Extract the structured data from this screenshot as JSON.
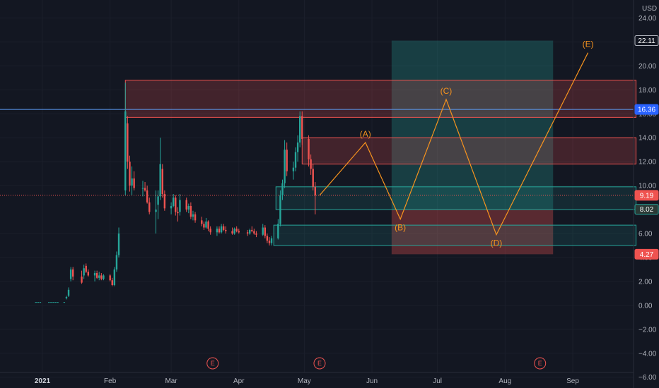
{
  "chart_data": {
    "type": "candlestick",
    "currency": "USD",
    "y_ticks": [
      "24.00",
      "22.00",
      "20.00",
      "18.00",
      "16.00",
      "14.00",
      "12.00",
      "10.00",
      "6.00",
      "4.00",
      "2.00",
      "0.00",
      "−2.00",
      "−4.00",
      "−6.00"
    ],
    "ylim": [
      -6.9,
      25.5
    ],
    "x_ticks": [
      {
        "label": "2021",
        "date": "2021-01-01",
        "bold": true
      },
      {
        "label": "Feb",
        "date": "2021-02-01"
      },
      {
        "label": "Mar",
        "date": "2021-03-01"
      },
      {
        "label": "Apr",
        "date": "2021-04-01"
      },
      {
        "label": "May",
        "date": "2021-05-01"
      },
      {
        "label": "Jun",
        "date": "2021-06-01"
      },
      {
        "label": "Jul",
        "date": "2021-07-01"
      },
      {
        "label": "Aug",
        "date": "2021-08-01"
      },
      {
        "label": "Sep",
        "date": "2021-09-01"
      }
    ],
    "price_tags": [
      {
        "value": 22.11,
        "label": "22.11",
        "color": "#131722",
        "border": "#b2b5be"
      },
      {
        "value": 16.36,
        "label": "16.36",
        "color": "#2962ff"
      },
      {
        "value": 9.19,
        "label": "9.19",
        "color": "#ef5350"
      },
      {
        "value": 8.02,
        "label": "8.02",
        "color": "#2a3a36",
        "border": "#26a69a"
      },
      {
        "value": 4.27,
        "label": "4.27",
        "color": "#ef5350"
      }
    ],
    "horizontal_lines": [
      {
        "value": 16.36,
        "color": "#5b9cf6",
        "style": "solid"
      },
      {
        "value": 9.19,
        "color": "#ef5350",
        "style": "dotted"
      }
    ],
    "zones": [
      {
        "type": "resistance",
        "x_start": "2021-02-08",
        "x_end": "2021-09-30",
        "y_top": 18.8,
        "y_bottom": 15.7
      },
      {
        "type": "resistance",
        "x_start": "2021-04-30",
        "x_end": "2021-09-30",
        "y_top": 14.0,
        "y_bottom": 11.8
      },
      {
        "type": "support",
        "x_start": "2021-04-18",
        "x_end": "2021-09-30",
        "y_top": 9.9,
        "y_bottom": 8.0
      },
      {
        "type": "support",
        "x_start": "2021-04-17",
        "x_end": "2021-09-30",
        "y_top": 6.7,
        "y_bottom": 5.0
      }
    ],
    "position": {
      "x_start": "2021-06-10",
      "x_end": "2021-08-23",
      "entry": 8.02,
      "target": 22.11,
      "stop": 4.27
    },
    "waves": [
      {
        "date": "2021-05-08",
        "price": 9.19,
        "label": ""
      },
      {
        "date": "2021-05-29",
        "price": 13.6,
        "label": "(A)"
      },
      {
        "date": "2021-06-14",
        "price": 7.2,
        "label": "(B)"
      },
      {
        "date": "2021-07-05",
        "price": 17.2,
        "label": "(C)"
      },
      {
        "date": "2021-07-28",
        "price": 5.9,
        "label": "(D)"
      },
      {
        "date": "2021-09-08",
        "price": 21.1,
        "label": "(E)"
      }
    ],
    "earnings": [
      {
        "date": "2021-03-20",
        "label": "E"
      },
      {
        "date": "2021-05-08",
        "label": "E"
      },
      {
        "date": "2021-08-17",
        "label": "E"
      }
    ],
    "candles": [
      [
        "2020-12-29",
        0.28,
        0.28,
        0.28,
        0.28
      ],
      [
        "2020-12-30",
        0.28,
        0.28,
        0.28,
        0.28
      ],
      [
        "2020-12-31",
        0.28,
        0.28,
        0.28,
        0.28
      ],
      [
        "2021-01-04",
        0.28,
        0.28,
        0.28,
        0.28
      ],
      [
        "2021-01-05",
        0.28,
        0.28,
        0.28,
        0.28
      ],
      [
        "2021-01-06",
        0.28,
        0.28,
        0.28,
        0.28
      ],
      [
        "2021-01-07",
        0.28,
        0.28,
        0.28,
        0.28
      ],
      [
        "2021-01-08",
        0.28,
        0.28,
        0.28,
        0.28
      ],
      [
        "2021-01-11",
        0.28,
        0.28,
        0.28,
        0.28
      ],
      [
        "2021-01-12",
        0.6,
        0.8,
        0.5,
        0.7
      ],
      [
        "2021-01-13",
        0.8,
        1.5,
        0.7,
        1.3
      ],
      [
        "2021-01-14",
        2.2,
        3.2,
        2.0,
        3.0
      ],
      [
        "2021-01-15",
        3.0,
        3.2,
        2.1,
        2.4
      ],
      [
        "2021-01-19",
        2.4,
        2.9,
        1.8,
        1.9
      ],
      [
        "2021-01-20",
        2.5,
        3.4,
        2.2,
        3.1
      ],
      [
        "2021-01-21",
        3.3,
        3.5,
        2.7,
        2.8
      ],
      [
        "2021-01-22",
        2.8,
        3.0,
        2.4,
        2.5
      ],
      [
        "2021-01-25",
        2.5,
        2.9,
        2.0,
        2.7
      ],
      [
        "2021-01-26",
        2.7,
        2.9,
        2.2,
        2.3
      ],
      [
        "2021-01-27",
        2.3,
        2.8,
        2.1,
        2.5
      ],
      [
        "2021-01-28",
        2.5,
        2.7,
        2.1,
        2.2
      ],
      [
        "2021-01-29",
        2.2,
        2.6,
        2.1,
        2.5
      ],
      [
        "2021-02-01",
        2.5,
        2.6,
        2.0,
        2.1
      ],
      [
        "2021-02-02",
        2.1,
        2.3,
        1.6,
        1.7
      ],
      [
        "2021-02-03",
        1.7,
        3.2,
        1.6,
        3.0
      ],
      [
        "2021-02-04",
        3.0,
        4.5,
        2.8,
        4.2
      ],
      [
        "2021-02-05",
        4.2,
        6.5,
        4.0,
        6.0
      ],
      [
        "2021-02-08",
        9.6,
        18.6,
        9.2,
        16.2
      ],
      [
        "2021-02-09",
        15.2,
        15.8,
        11.4,
        12.0
      ],
      [
        "2021-02-10",
        12.0,
        12.5,
        9.5,
        10.0
      ],
      [
        "2021-02-11",
        10.0,
        11.6,
        9.2,
        10.6
      ],
      [
        "2021-02-12",
        10.6,
        11.2,
        9.6,
        9.8
      ],
      [
        "2021-02-16",
        9.8,
        10.4,
        9.1,
        9.8
      ],
      [
        "2021-02-17",
        9.8,
        10.3,
        9.5,
        9.6
      ],
      [
        "2021-02-18",
        9.6,
        10.0,
        8.5,
        8.6
      ],
      [
        "2021-02-19",
        8.6,
        9.0,
        7.6,
        7.8
      ],
      [
        "2021-02-22",
        7.8,
        9.6,
        6.0,
        8.0
      ],
      [
        "2021-02-23",
        8.4,
        9.6,
        7.2,
        9.1
      ],
      [
        "2021-02-24",
        9.1,
        14.0,
        8.8,
        11.8
      ],
      [
        "2021-02-25",
        11.4,
        11.8,
        9.0,
        9.3
      ],
      [
        "2021-02-26",
        9.3,
        9.6,
        7.9,
        8.1
      ],
      [
        "2021-03-01",
        8.1,
        8.6,
        7.6,
        8.3
      ],
      [
        "2021-03-02",
        8.3,
        9.3,
        8.2,
        9.0
      ],
      [
        "2021-03-03",
        9.0,
        9.2,
        7.5,
        7.8
      ],
      [
        "2021-03-04",
        7.8,
        8.2,
        7.0,
        7.7
      ],
      [
        "2021-03-05",
        7.8,
        9.3,
        7.5,
        8.8
      ],
      [
        "2021-03-08",
        8.8,
        9.0,
        7.8,
        8.0
      ],
      [
        "2021-03-09",
        8.0,
        8.5,
        7.7,
        8.3
      ],
      [
        "2021-03-10",
        8.3,
        8.6,
        7.2,
        7.4
      ],
      [
        "2021-03-11",
        7.4,
        7.9,
        7.1,
        7.6
      ],
      [
        "2021-03-12",
        7.6,
        7.8,
        6.9,
        7.1
      ],
      [
        "2021-03-15",
        7.1,
        7.4,
        6.6,
        6.8
      ],
      [
        "2021-03-16",
        6.8,
        7.0,
        6.3,
        6.5
      ],
      [
        "2021-03-17",
        6.5,
        7.3,
        6.4,
        7.0
      ],
      [
        "2021-03-18",
        7.0,
        7.1,
        6.2,
        6.4
      ],
      [
        "2021-03-19",
        6.4,
        6.6,
        5.9,
        6.1
      ],
      [
        "2021-03-22",
        6.1,
        6.6,
        5.8,
        6.4
      ],
      [
        "2021-03-23",
        6.4,
        6.6,
        6.0,
        6.1
      ],
      [
        "2021-03-24",
        6.1,
        6.8,
        6.0,
        6.6
      ],
      [
        "2021-03-25",
        6.6,
        6.8,
        6.2,
        6.3
      ],
      [
        "2021-03-26",
        6.3,
        6.6,
        6.0,
        6.2
      ],
      [
        "2021-03-29",
        6.2,
        6.5,
        5.9,
        6.0
      ],
      [
        "2021-03-30",
        6.0,
        6.5,
        5.9,
        6.4
      ],
      [
        "2021-03-31",
        6.4,
        6.6,
        6.1,
        6.2
      ],
      [
        "2021-04-01",
        6.2,
        6.4,
        6.0,
        6.1
      ],
      [
        "2021-04-05",
        6.1,
        6.3,
        5.8,
        6.0
      ],
      [
        "2021-04-06",
        6.0,
        6.4,
        5.9,
        6.3
      ],
      [
        "2021-04-07",
        6.3,
        6.6,
        6.1,
        6.2
      ],
      [
        "2021-04-08",
        6.2,
        6.4,
        5.9,
        6.0
      ],
      [
        "2021-04-09",
        6.0,
        6.2,
        5.7,
        5.9
      ],
      [
        "2021-04-12",
        5.9,
        6.8,
        5.8,
        6.5
      ],
      [
        "2021-04-13",
        6.5,
        6.7,
        5.6,
        5.8
      ],
      [
        "2021-04-14",
        5.8,
        6.0,
        5.2,
        5.4
      ],
      [
        "2021-04-15",
        5.4,
        5.7,
        5.0,
        5.2
      ],
      [
        "2021-04-16",
        5.2,
        5.8,
        5.0,
        5.6
      ],
      [
        "2021-04-19",
        5.6,
        7.2,
        5.5,
        6.8
      ],
      [
        "2021-04-20",
        6.8,
        9.6,
        6.6,
        9.2
      ],
      [
        "2021-04-21",
        9.2,
        10.5,
        8.8,
        10.2
      ],
      [
        "2021-04-22",
        10.2,
        13.8,
        9.8,
        13.0
      ],
      [
        "2021-04-23",
        13.0,
        13.6,
        10.8,
        11.2
      ],
      [
        "2021-04-26",
        11.2,
        12.0,
        10.5,
        11.5
      ],
      [
        "2021-04-27",
        11.5,
        13.2,
        11.2,
        12.8
      ],
      [
        "2021-04-28",
        12.8,
        14.2,
        12.0,
        13.6
      ],
      [
        "2021-04-29",
        13.6,
        16.2,
        13.2,
        15.8
      ],
      [
        "2021-04-30",
        15.8,
        16.2,
        13.4,
        13.9
      ],
      [
        "2021-05-03",
        13.9,
        14.2,
        11.6,
        12.2
      ],
      [
        "2021-05-04",
        12.2,
        12.6,
        10.9,
        11.4
      ],
      [
        "2021-05-05",
        11.4,
        11.8,
        9.6,
        9.9
      ],
      [
        "2021-05-06",
        9.9,
        10.3,
        7.6,
        9.19
      ]
    ]
  }
}
